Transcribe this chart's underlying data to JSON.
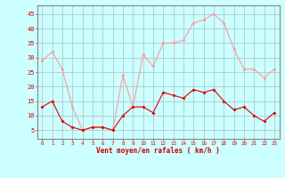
{
  "hours": [
    0,
    1,
    2,
    3,
    4,
    5,
    6,
    7,
    8,
    9,
    10,
    11,
    12,
    13,
    14,
    15,
    16,
    17,
    18,
    19,
    20,
    21,
    22,
    23
  ],
  "wind_mean": [
    13,
    15,
    8,
    6,
    5,
    6,
    6,
    5,
    10,
    13,
    13,
    11,
    18,
    17,
    16,
    19,
    18,
    19,
    15,
    12,
    13,
    10,
    8,
    11
  ],
  "wind_gust": [
    29,
    32,
    26,
    13,
    5,
    6,
    6,
    5,
    24,
    13,
    31,
    27,
    35,
    35,
    36,
    42,
    43,
    45,
    42,
    33,
    26,
    26,
    23,
    26
  ],
  "line_color_mean": "#dd0000",
  "line_color_gust": "#ff9999",
  "bg_color": "#ccffff",
  "grid_color": "#aacccc",
  "spine_color": "#888888",
  "xlabel": "Vent moyen/en rafales ( km/h )",
  "xlabel_color": "#cc0000",
  "tick_color": "#cc0000",
  "ylim": [
    2,
    48
  ],
  "yticks": [
    5,
    10,
    15,
    20,
    25,
    30,
    35,
    40,
    45
  ],
  "marker_size": 2.0,
  "line_width": 0.8
}
